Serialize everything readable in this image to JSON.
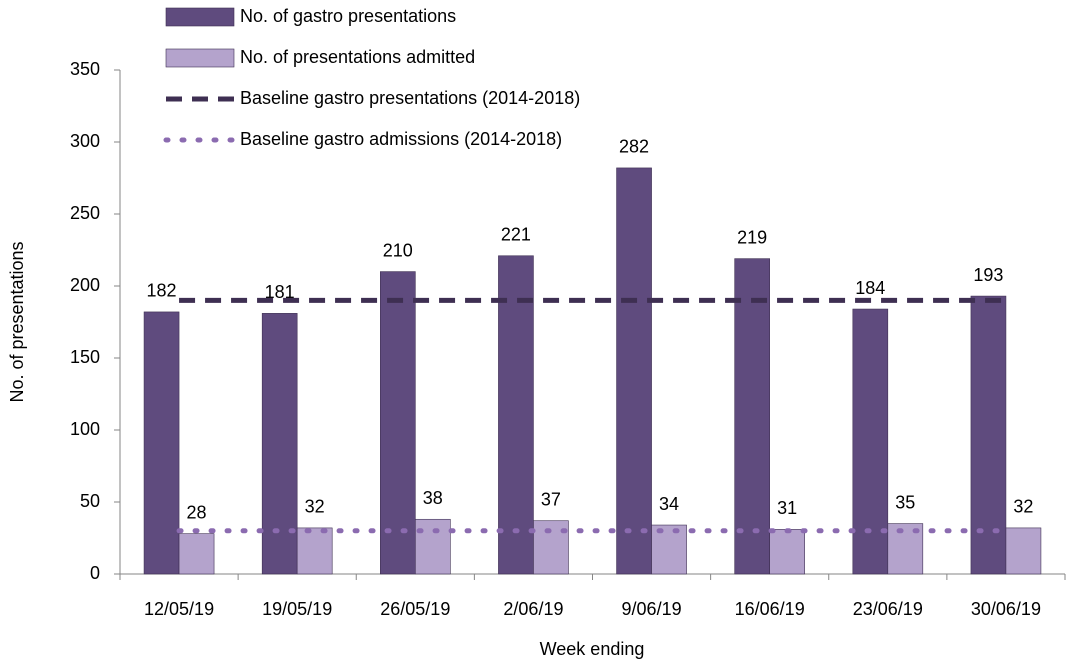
{
  "chart_data": {
    "type": "bar",
    "x_label": "Week ending",
    "y_label": "No. of presentations",
    "categories": [
      "12/05/19",
      "19/05/19",
      "26/05/19",
      "2/06/19",
      "9/06/19",
      "16/06/19",
      "23/06/19",
      "30/06/19"
    ],
    "series": [
      {
        "name": "No. of gastro presentations",
        "type": "bar",
        "color": "#5f4b7e",
        "values": [
          182,
          181,
          210,
          221,
          282,
          219,
          184,
          193
        ]
      },
      {
        "name": "No. of presentations admitted",
        "type": "bar",
        "color": "#b4a3cc",
        "values": [
          28,
          32,
          38,
          37,
          34,
          31,
          35,
          32
        ]
      },
      {
        "name": "Baseline gastro presentations (2014-2018)",
        "type": "line",
        "style": "dashed",
        "color": "#3e2f52",
        "values": [
          190,
          190,
          190,
          190,
          190,
          190,
          190,
          190
        ]
      },
      {
        "name": "Baseline gastro admissions (2014-2018)",
        "type": "line",
        "style": "dotted",
        "color": "#8b6bb0",
        "values": [
          30,
          30,
          30,
          30,
          30,
          30,
          30,
          30
        ]
      }
    ],
    "ylim": [
      0,
      350
    ],
    "yticks": [
      0,
      50,
      100,
      150,
      200,
      250,
      300,
      350
    ],
    "grid": false,
    "data_labels": true,
    "legend": "top"
  }
}
